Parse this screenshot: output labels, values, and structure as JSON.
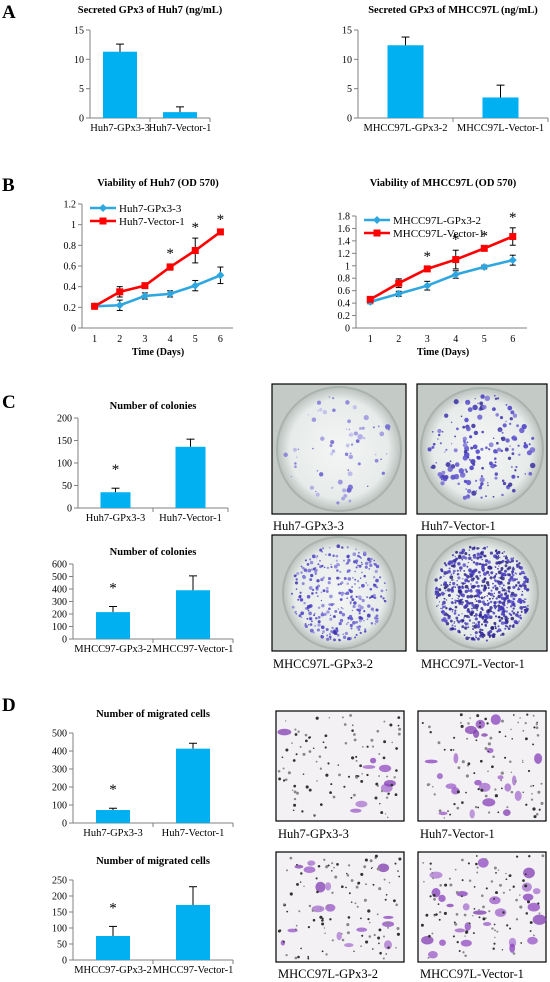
{
  "panel_letters": [
    "A",
    "B",
    "C",
    "D"
  ],
  "photo_labels": {
    "c": [
      "Huh7-GPx3-3",
      "Huh7-Vector-1",
      "MHCC97L-GPx3-2",
      "MHCC97L-Vector-1"
    ],
    "d": [
      "Huh7-GPx3-3",
      "Huh7-Vector-1",
      "MHCC97L-GPx3-2",
      "MHCC97L-Vector-1"
    ]
  },
  "colors": {
    "bar": "#00b0f0",
    "line_gpx3": "#2ea7e0",
    "line_vector": "#ff0000",
    "axis": "#808080"
  },
  "chart_data": [
    {
      "id": "a1",
      "type": "bar",
      "title": "Secreted GPx3 of Huh7 (ng/mL)",
      "categories": [
        "Huh7-GPx3-3",
        "Huh7-Vector-1"
      ],
      "values": [
        11.3,
        1.0
      ],
      "errors": [
        1.3,
        0.9
      ],
      "ylim": [
        0,
        15
      ],
      "yticks": [
        0,
        5,
        10,
        15
      ],
      "stars": [
        "",
        ""
      ]
    },
    {
      "id": "a2",
      "type": "bar",
      "title": "Secreted GPx3 of MHCC97L (ng/mL)",
      "categories": [
        "MHCC97L-GPx3-2",
        "MHCC97L-Vector-1"
      ],
      "values": [
        12.4,
        3.5
      ],
      "errors": [
        1.4,
        2.1
      ],
      "ylim": [
        0,
        15
      ],
      "yticks": [
        0,
        5,
        10,
        15
      ],
      "stars": [
        "",
        ""
      ]
    },
    {
      "id": "b1",
      "type": "line",
      "title": "Viability of Huh7 (OD 570)",
      "xlabel": "Time (Days)",
      "x": [
        1,
        2,
        3,
        4,
        5,
        6
      ],
      "ylim": [
        0,
        1.2
      ],
      "yticks": [
        0,
        0.2,
        0.4,
        0.6,
        0.8,
        1,
        1.2
      ],
      "legend": "top-left",
      "series": [
        {
          "name": "Huh7-GPx3-3",
          "values": [
            0.21,
            0.22,
            0.31,
            0.33,
            0.41,
            0.51
          ],
          "errors": [
            0.02,
            0.05,
            0.03,
            0.03,
            0.05,
            0.08
          ]
        },
        {
          "name": "Huh7-Vector-1",
          "values": [
            0.21,
            0.35,
            0.41,
            0.59,
            0.75,
            0.93
          ],
          "errors": [
            0.02,
            0.05,
            0.02,
            0.03,
            0.12,
            0.02
          ]
        }
      ],
      "stars": [
        4,
        5,
        6
      ]
    },
    {
      "id": "b2",
      "type": "line",
      "title": "Viability of MHCC97L (OD 570)",
      "xlabel": "Time (Days)",
      "x": [
        1,
        2,
        3,
        4,
        5,
        6
      ],
      "ylim": [
        0,
        1.8
      ],
      "yticks": [
        0,
        0.2,
        0.4,
        0.6,
        0.8,
        1,
        1.2,
        1.4,
        1.6,
        1.8
      ],
      "legend": "top-left",
      "series": [
        {
          "name": "MHCC97L-GPx3-2",
          "values": [
            0.42,
            0.55,
            0.68,
            0.86,
            0.98,
            1.09
          ],
          "errors": [
            0.03,
            0.04,
            0.07,
            0.06,
            0.03,
            0.08
          ]
        },
        {
          "name": "MHCC97L-Vector-1",
          "values": [
            0.46,
            0.72,
            0.95,
            1.1,
            1.28,
            1.47
          ],
          "errors": [
            0.03,
            0.07,
            0.03,
            0.15,
            0.03,
            0.14
          ]
        }
      ],
      "stars": [
        3,
        4,
        5,
        6
      ]
    },
    {
      "id": "c1",
      "type": "bar",
      "title": "Number of colonies",
      "categories": [
        "Huh7-GPx3-3",
        "Huh7-Vector-1"
      ],
      "values": [
        35,
        136
      ],
      "errors": [
        9,
        17
      ],
      "ylim": [
        0,
        200
      ],
      "yticks": [
        0,
        50,
        100,
        150,
        200
      ],
      "stars": [
        "*",
        ""
      ]
    },
    {
      "id": "c2",
      "type": "bar",
      "title": "Number of colonies",
      "categories": [
        "MHCC97-GPx3-2",
        "MHCC97-Vector-1"
      ],
      "values": [
        215,
        390
      ],
      "errors": [
        45,
        115
      ],
      "ylim": [
        0,
        600
      ],
      "yticks": [
        0,
        100,
        200,
        300,
        400,
        500,
        600
      ],
      "stars": [
        "*",
        ""
      ]
    },
    {
      "id": "d1",
      "type": "bar",
      "title": "Number of migrated cells",
      "categories": [
        "Huh7-GPx3-3",
        "Huh7-Vector-1"
      ],
      "values": [
        72,
        413
      ],
      "errors": [
        10,
        30
      ],
      "ylim": [
        0,
        500
      ],
      "yticks": [
        0,
        100,
        200,
        300,
        400,
        500
      ],
      "stars": [
        "*",
        ""
      ]
    },
    {
      "id": "d2",
      "type": "bar",
      "title": "Number of migrated cells",
      "categories": [
        "MHCC97-GPx3-2",
        "MHCC97-Vector-1"
      ],
      "values": [
        75,
        172
      ],
      "errors": [
        30,
        57
      ],
      "ylim": [
        0,
        250
      ],
      "yticks": [
        0,
        50,
        100,
        150,
        200,
        250
      ],
      "stars": [
        "*",
        ""
      ]
    }
  ]
}
